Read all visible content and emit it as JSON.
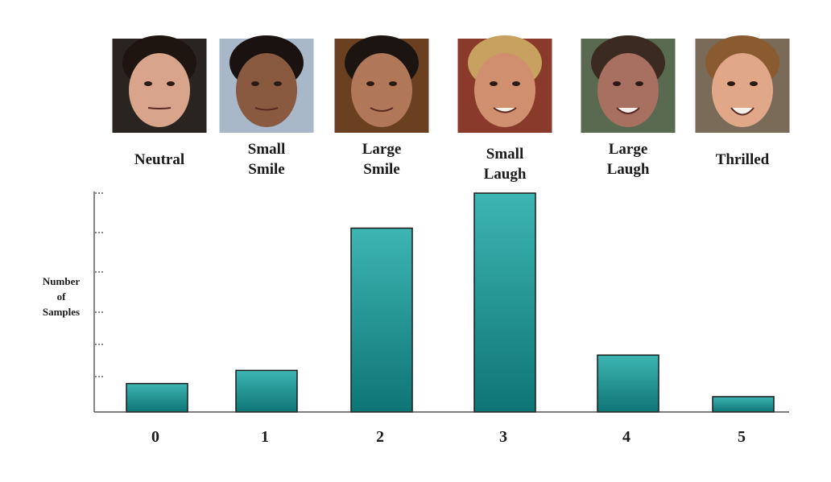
{
  "chart_data": {
    "type": "bar",
    "categories": [
      "0",
      "1",
      "2",
      "3",
      "4",
      "5"
    ],
    "values": [
      0.13,
      0.19,
      0.84,
      1.0,
      0.26,
      0.07
    ],
    "xlabel": "",
    "ylabel": [
      "Number",
      "of",
      "Samples"
    ],
    "ylim": [
      0,
      1.0
    ],
    "grid": false,
    "bar_color_top": "#3db5b3",
    "bar_color_bottom": "#0e7575",
    "y_tick_count": 6
  },
  "faces": [
    {
      "label_lines": [
        "Neutral"
      ],
      "skin": "#d8a58c",
      "hair": "#1e1410",
      "bg": "#2a2420"
    },
    {
      "label_lines": [
        "Small",
        "Smile"
      ],
      "skin": "#8a5a40",
      "hair": "#1a1210",
      "bg": "#a8b8c8"
    },
    {
      "label_lines": [
        "Large",
        "Smile"
      ],
      "skin": "#b07858",
      "hair": "#1c1410",
      "bg": "#6a4020"
    },
    {
      "label_lines": [
        "Small",
        "Laugh"
      ],
      "skin": "#d09070",
      "hair": "#c8a060",
      "bg": "#8a3a2a"
    },
    {
      "label_lines": [
        "Large",
        "Laugh"
      ],
      "skin": "#a87060",
      "hair": "#3a2a20",
      "bg": "#5a6a50"
    },
    {
      "label_lines": [
        "Thrilled"
      ],
      "skin": "#e0a888",
      "hair": "#8a5a30",
      "bg": "#7a6a58"
    }
  ]
}
